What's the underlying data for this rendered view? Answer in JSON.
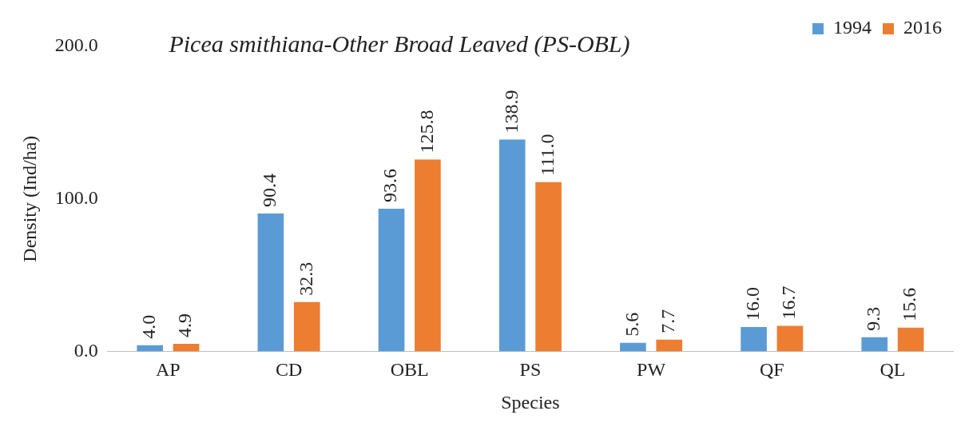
{
  "chart_data": {
    "type": "bar",
    "title": "Picea smithiana-Other Broad Leaved (PS-OBL)",
    "xlabel": "Species",
    "ylabel": "Density (Ind/ha)",
    "categories": [
      "AP",
      "CD",
      "OBL",
      "PS",
      "PW",
      "QF",
      "QL"
    ],
    "series": [
      {
        "name": "1994",
        "color": "#5b9bd5",
        "values": [
          4.0,
          90.4,
          93.6,
          138.9,
          5.6,
          16.0,
          9.3
        ],
        "value_labels": [
          "4.0",
          "90.4",
          "93.6",
          "138.9",
          "5.6",
          "16.0",
          "9.3"
        ]
      },
      {
        "name": "2016",
        "color": "#ed7d31",
        "values": [
          4.9,
          32.3,
          125.8,
          111.0,
          7.7,
          16.7,
          15.6
        ],
        "value_labels": [
          "4.9",
          "32.3",
          "125.8",
          "111.0",
          "7.7",
          "16.7",
          "15.6"
        ]
      }
    ],
    "ylim": [
      0,
      200
    ],
    "yticks": [
      {
        "value": 0,
        "label": "0.0"
      },
      {
        "value": 100,
        "label": "100.0"
      },
      {
        "value": 200,
        "label": "200.0"
      }
    ],
    "grid": false,
    "legend": "top right"
  }
}
